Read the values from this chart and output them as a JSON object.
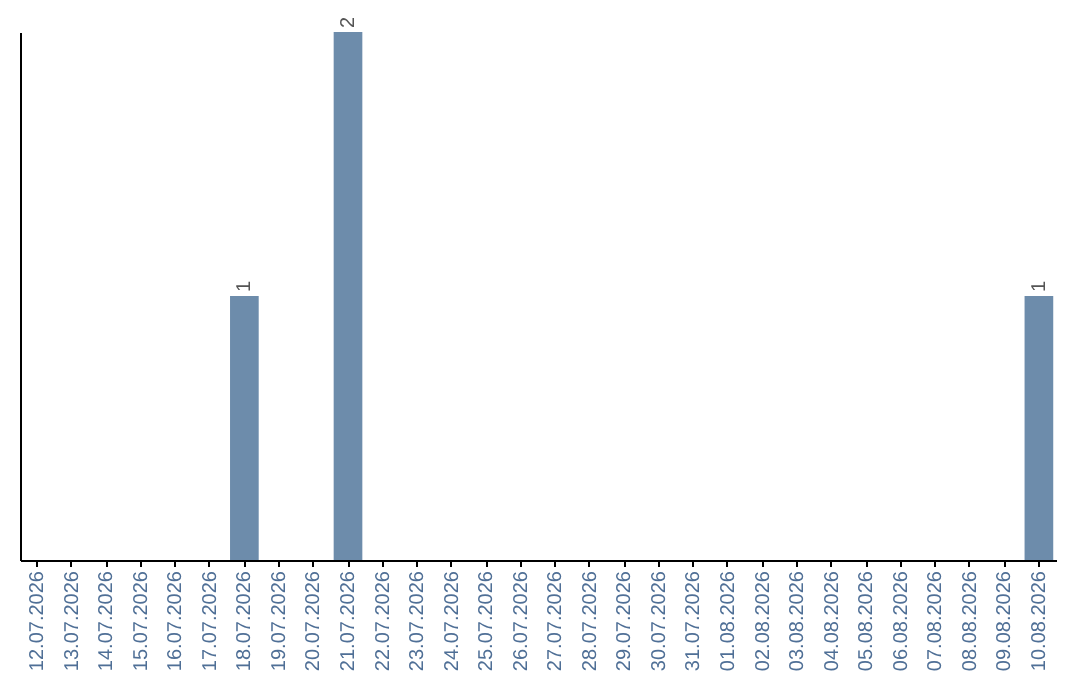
{
  "chart_data": {
    "type": "bar",
    "categories": [
      "12.07.2026",
      "13.07.2026",
      "14.07.2026",
      "15.07.2026",
      "16.07.2026",
      "17.07.2026",
      "18.07.2026",
      "19.07.2026",
      "20.07.2026",
      "21.07.2026",
      "22.07.2026",
      "23.07.2026",
      "24.07.2026",
      "25.07.2026",
      "26.07.2026",
      "27.07.2026",
      "28.07.2026",
      "29.07.2026",
      "30.07.2026",
      "31.07.2026",
      "01.08.2026",
      "02.08.2026",
      "03.08.2026",
      "04.08.2026",
      "05.08.2026",
      "06.08.2026",
      "07.08.2026",
      "08.08.2026",
      "09.08.2026",
      "10.08.2026"
    ],
    "values": [
      0,
      0,
      0,
      0,
      0,
      0,
      1,
      0,
      0,
      2,
      0,
      0,
      0,
      0,
      0,
      0,
      0,
      0,
      0,
      0,
      0,
      0,
      0,
      0,
      0,
      0,
      0,
      0,
      0,
      1
    ],
    "value_labels": [
      null,
      null,
      null,
      null,
      null,
      null,
      "1",
      null,
      null,
      "2",
      null,
      null,
      null,
      null,
      null,
      null,
      null,
      null,
      null,
      null,
      null,
      null,
      null,
      null,
      null,
      null,
      null,
      null,
      null,
      "1"
    ],
    "color": "#6d8cab"
  }
}
